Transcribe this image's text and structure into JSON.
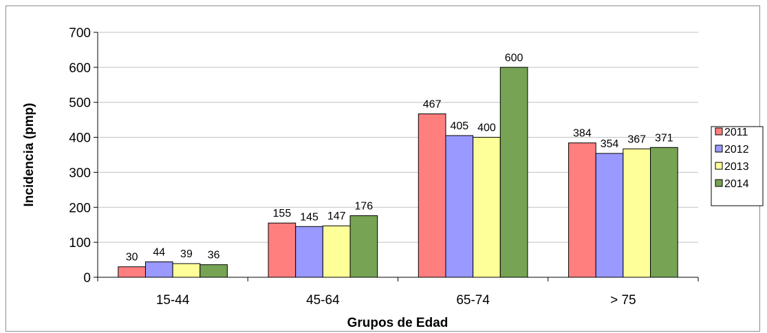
{
  "chart_data": {
    "type": "bar",
    "title": "",
    "xlabel": "Grupos de Edad",
    "ylabel": "Incidencia (pmp)",
    "ylim": [
      0,
      700
    ],
    "yticks": [
      0,
      100,
      200,
      300,
      400,
      500,
      600,
      700
    ],
    "grid": true,
    "legend_position": "right",
    "categories": [
      "15-44",
      "45-64",
      "65-74",
      "> 75"
    ],
    "series": [
      {
        "name": "2011",
        "color": "#ff7f7f",
        "values": [
          30,
          155,
          467,
          384
        ]
      },
      {
        "name": "2012",
        "color": "#9999ff",
        "values": [
          44,
          145,
          405,
          354
        ]
      },
      {
        "name": "2013",
        "color": "#ffff99",
        "values": [
          39,
          147,
          400,
          367
        ]
      },
      {
        "name": "2014",
        "color": "#77a354",
        "values": [
          36,
          176,
          600,
          371
        ]
      }
    ]
  }
}
